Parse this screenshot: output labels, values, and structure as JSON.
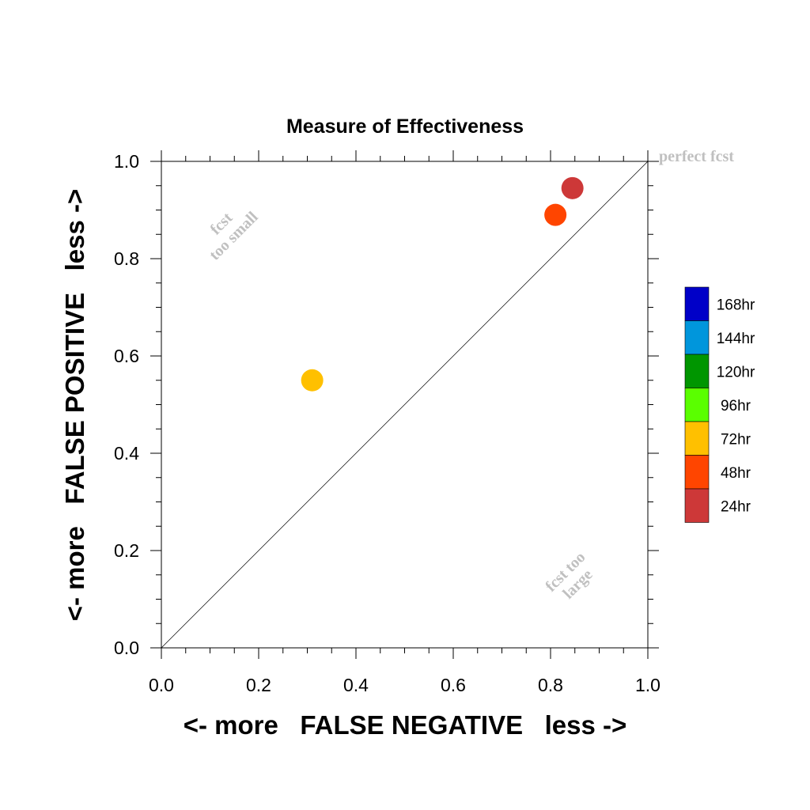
{
  "chart_data": {
    "type": "scatter",
    "title": "Measure of Effectiveness",
    "xlabel": "<- more   FALSE NEGATIVE   less ->",
    "ylabel": "<- more   FALSE POSITIVE   less ->",
    "xlim": [
      0,
      1
    ],
    "ylim": [
      0,
      1
    ],
    "x_ticks": [
      "0.0",
      "0.2",
      "0.4",
      "0.6",
      "0.8",
      "1.0"
    ],
    "y_ticks": [
      "0.0",
      "0.2",
      "0.4",
      "0.6",
      "0.8",
      "1.0"
    ],
    "reference_line": "diagonal y = x",
    "grid": false,
    "points": [
      {
        "label": "72hr",
        "x": 0.31,
        "y": 0.55,
        "color": "#ffc000"
      },
      {
        "label": "48hr",
        "x": 0.81,
        "y": 0.89,
        "color": "#ff4500"
      },
      {
        "label": "24hr",
        "x": 0.845,
        "y": 0.945,
        "color": "#cd3838"
      }
    ],
    "annotations": {
      "perfect": "perfect fcst",
      "too_small_line1": "fcst",
      "too_small_line2": "too small",
      "too_large_line1": "fcst too",
      "too_large_line2": "large"
    },
    "legend": {
      "placement": "right",
      "items": [
        {
          "label": "168hr",
          "color": "#0000c8"
        },
        {
          "label": "144hr",
          "color": "#0096dc"
        },
        {
          "label": "120hr",
          "color": "#009600"
        },
        {
          "label": "96hr",
          "color": "#5aff00"
        },
        {
          "label": "72hr",
          "color": "#ffc000"
        },
        {
          "label": "48hr",
          "color": "#ff4500"
        },
        {
          "label": "24hr",
          "color": "#cd3838"
        }
      ]
    }
  }
}
